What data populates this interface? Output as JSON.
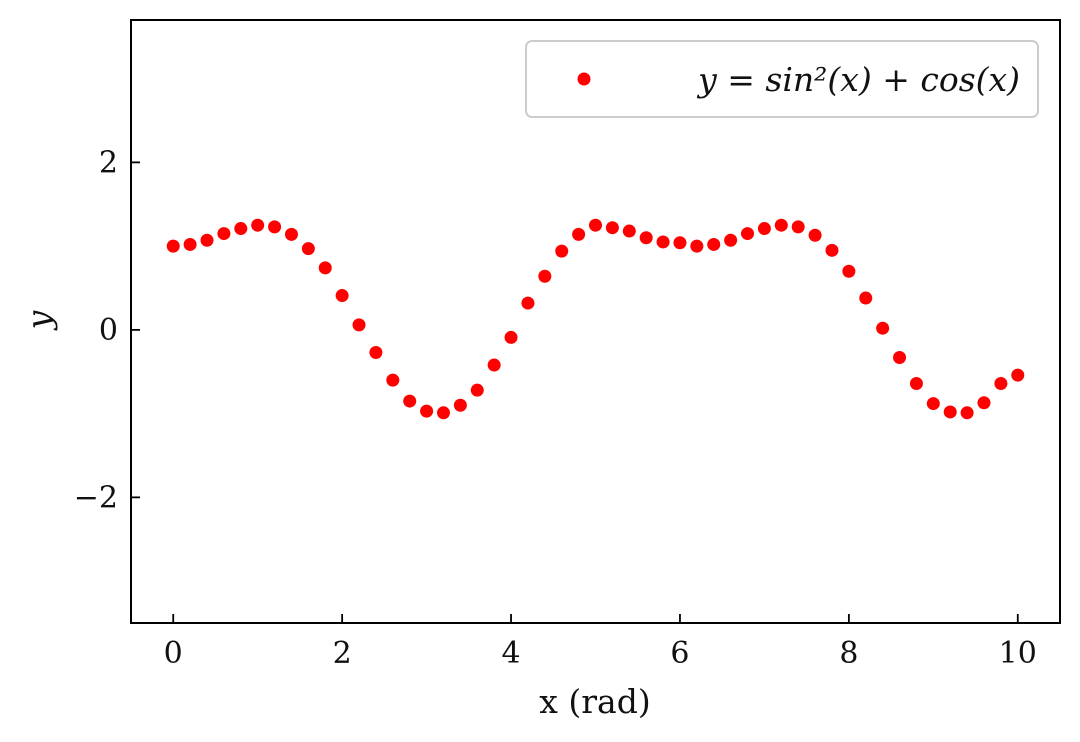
{
  "chart_data": {
    "type": "scatter",
    "xlabel": "x (rad)",
    "ylabel": "y",
    "xlim": [
      -0.5,
      10.5
    ],
    "ylim": [
      -3.5,
      3.7
    ],
    "xticks": [
      0,
      2,
      4,
      6,
      8,
      10
    ],
    "yticks": [
      -2,
      0,
      2
    ],
    "xtick_labels": [
      "0",
      "2",
      "4",
      "6",
      "8",
      "10"
    ],
    "ytick_labels": [
      "−2",
      "0",
      "2"
    ],
    "grid": false,
    "legend_position": "top-right",
    "series": [
      {
        "name": "y = sin²(x) + cos(x)",
        "color": "#ff0000",
        "marker": "circle",
        "x": [
          0,
          0.2,
          0.4,
          0.6,
          0.8,
          1.0,
          1.2,
          1.4,
          1.6,
          1.8,
          2.0,
          2.2,
          2.4,
          2.6,
          2.8,
          3.0,
          3.2,
          3.4,
          3.6,
          3.8,
          4.0,
          4.2,
          4.4,
          4.6,
          4.8,
          5.0,
          5.2,
          5.4,
          5.6,
          5.8,
          6.0,
          6.2,
          6.4,
          6.6,
          6.8,
          7.0,
          7.2,
          7.4,
          7.6,
          7.8,
          8.0,
          8.2,
          8.4,
          8.6,
          8.8,
          9.0,
          9.2,
          9.4,
          9.6,
          9.8,
          10.0
        ],
        "y": [
          1.0,
          1.02,
          1.07,
          1.15,
          1.21,
          1.25,
          1.23,
          1.14,
          0.97,
          0.74,
          0.41,
          0.06,
          -0.27,
          -0.6,
          -0.85,
          -0.97,
          -0.99,
          -0.9,
          -0.72,
          -0.42,
          -0.09,
          0.32,
          0.64,
          0.94,
          1.14,
          1.25,
          1.22,
          1.18,
          1.1,
          1.05,
          1.04,
          1.0,
          1.02,
          1.07,
          1.15,
          1.21,
          1.25,
          1.23,
          1.13,
          0.95,
          0.7,
          0.38,
          0.02,
          -0.33,
          -0.64,
          -0.88,
          -0.98,
          -0.99,
          -0.87,
          -0.64,
          -0.54
        ]
      }
    ]
  }
}
